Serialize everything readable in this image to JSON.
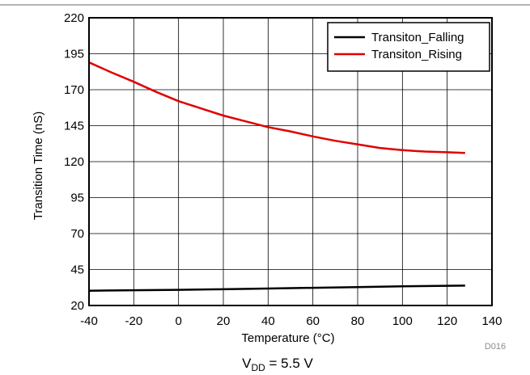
{
  "chart_data": {
    "type": "line",
    "xlabel": "Temperature (°C)",
    "ylabel": "Transition Time (nS)",
    "xlim": [
      -40,
      140
    ],
    "ylim": [
      20,
      220
    ],
    "x_ticks": [
      -40,
      -20,
      0,
      20,
      40,
      60,
      80,
      100,
      120,
      140
    ],
    "y_ticks": [
      20,
      45,
      70,
      95,
      120,
      145,
      170,
      195,
      220
    ],
    "grid": true,
    "legend_position": "top-right",
    "series": [
      {
        "name": "Transiton_Falling",
        "color": "#000000",
        "x": [
          -40,
          -20,
          0,
          20,
          40,
          60,
          80,
          100,
          120,
          128
        ],
        "y": [
          30.3,
          30.6,
          30.9,
          31.3,
          31.8,
          32.3,
          32.8,
          33.3,
          33.7,
          33.8
        ]
      },
      {
        "name": "Transiton_Rising",
        "color": "#e00000",
        "x": [
          -40,
          -30,
          -20,
          -10,
          0,
          10,
          20,
          30,
          40,
          50,
          60,
          70,
          80,
          90,
          100,
          110,
          120,
          128
        ],
        "y": [
          189,
          182,
          175.5,
          168.5,
          162,
          157,
          152,
          148,
          144,
          141,
          137.5,
          134.5,
          132,
          129.5,
          128,
          127,
          126.5,
          126
        ]
      }
    ]
  },
  "tag": "D016",
  "caption": {
    "prefix": "V",
    "subscript": "DD",
    "suffix": " = 5.5 V"
  }
}
